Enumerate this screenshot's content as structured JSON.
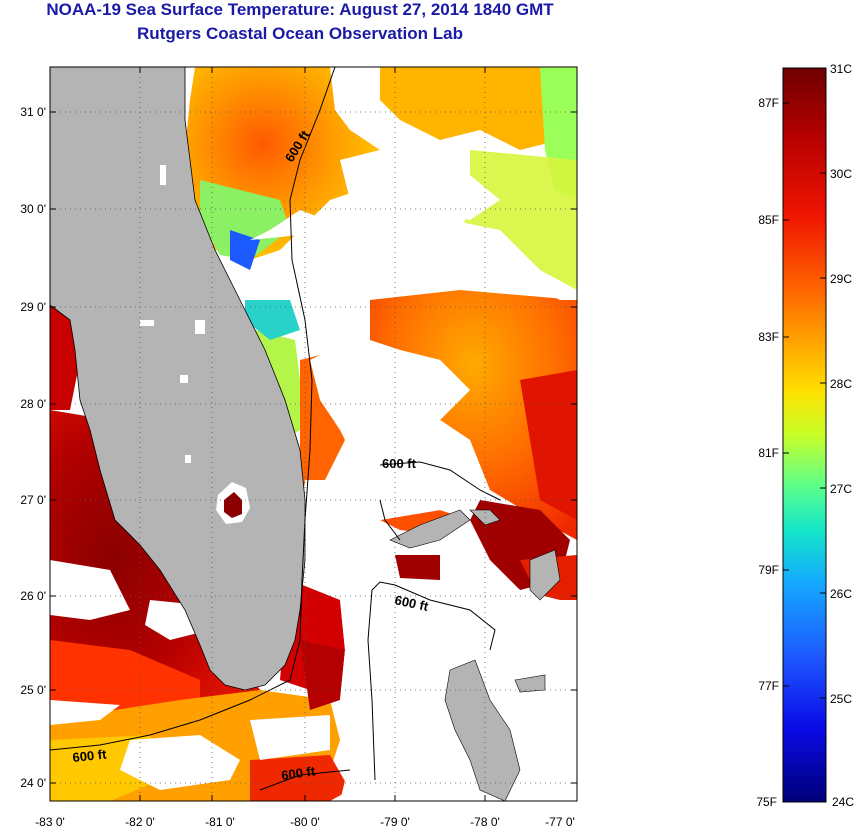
{
  "header": {
    "title": "NOAA-19 Sea Surface Temperature:  August 27, 2014 1840 GMT",
    "subtitle": "Rutgers Coastal Ocean Observation Lab"
  },
  "axes": {
    "lat_ticks": [
      "31 0'",
      "30 0'",
      "29 0'",
      "28 0'",
      "27 0'",
      "26 0'",
      "25 0'",
      "24 0'"
    ],
    "lon_ticks": [
      "-83 0'",
      "-82 0'",
      "-81 0'",
      "-80 0'",
      "-79 0'",
      "-78 0'",
      "-77 0'"
    ]
  },
  "contour_labels": [
    "600 ft",
    "600 ft",
    "600 ft",
    "600 ft",
    "600 ft"
  ],
  "colorbar": {
    "celsius": [
      "31C",
      "30C",
      "29C",
      "28C",
      "27C",
      "26C",
      "25C",
      "24C"
    ],
    "fahrenheit": [
      "87F",
      "85F",
      "83F",
      "81F",
      "79F",
      "77F",
      "75F"
    ],
    "colors": [
      "#7a0000",
      "#c80000",
      "#ff2a00",
      "#ff7a00",
      "#ffc400",
      "#e6ff1a",
      "#7dff5a",
      "#1ae6b4",
      "#14b4ff",
      "#1f5bff",
      "#0a0ae6",
      "#00007a"
    ]
  },
  "colors": {
    "land": "#b4b4b4",
    "cloud": "#ffffff",
    "title": "#1a1aa6"
  }
}
